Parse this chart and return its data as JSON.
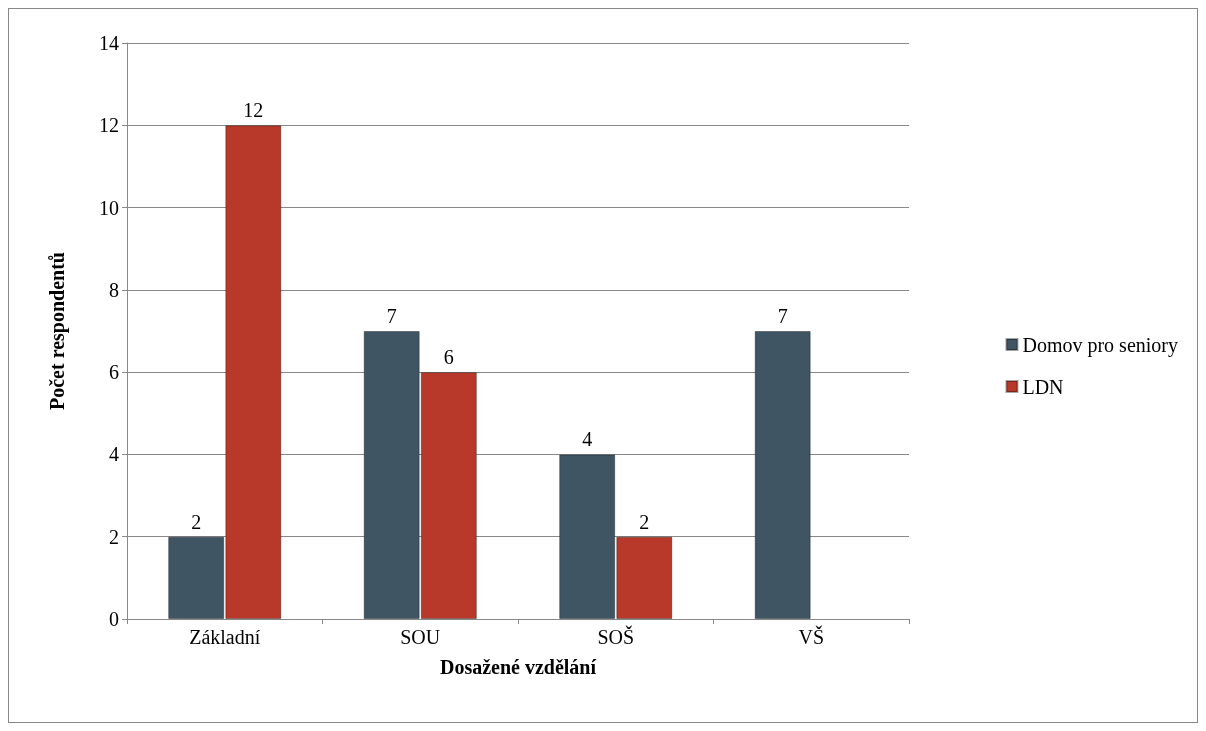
{
  "chart_data": {
    "type": "bar",
    "xlabel": "Dosažené vzdělání",
    "ylabel": "Počet respondentů",
    "categories": [
      "Základní",
      "SOU",
      "SOŠ",
      "VŠ"
    ],
    "series": [
      {
        "name": "Domov pro seniory",
        "color": "#3f5564",
        "values": [
          2,
          7,
          4,
          7
        ]
      },
      {
        "name": "LDN",
        "color": "#b8392a",
        "values": [
          12,
          6,
          2,
          null
        ]
      }
    ],
    "ylim": [
      0,
      14
    ],
    "yticks": [
      0,
      2,
      4,
      6,
      8,
      10,
      12,
      14
    ],
    "grid": "y",
    "legend": "right",
    "data_labels": true
  }
}
